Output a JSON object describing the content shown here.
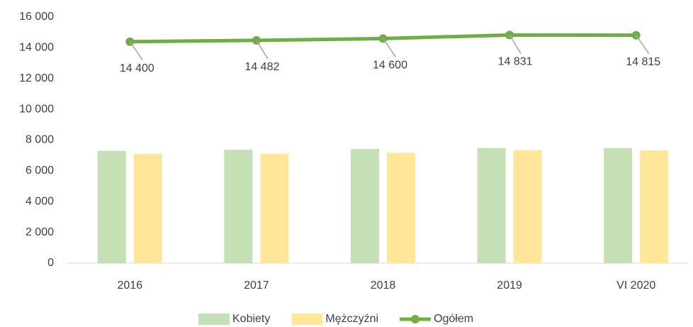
{
  "chart_data": {
    "type": "bar_line",
    "categories": [
      "2016",
      "2017",
      "2018",
      "2019",
      "VI 2020"
    ],
    "series": [
      {
        "name": "Kobiety",
        "type": "bar",
        "color": "#c5e0b4",
        "values": [
          7300,
          7370,
          7420,
          7490,
          7480
        ]
      },
      {
        "name": "Mężczyźni",
        "type": "bar",
        "color": "#ffe699",
        "values": [
          7100,
          7112,
          7180,
          7341,
          7335
        ]
      },
      {
        "name": "Ogółem",
        "type": "line",
        "color": "#70ad47",
        "values": [
          14400,
          14482,
          14600,
          14831,
          14815
        ],
        "value_labels": [
          "14 400",
          "14 482",
          "14 600",
          "14 831",
          "14 815"
        ]
      }
    ],
    "ylim": [
      0,
      16000
    ],
    "yticks": [
      0,
      {
        "value": 2000,
        "label": "2 000"
      },
      {
        "value": 4000,
        "label": "4 000"
      },
      {
        "value": 6000,
        "label": "6 000"
      },
      {
        "value": 8000,
        "label": "8 000"
      },
      {
        "value": 10000,
        "label": "10 000"
      },
      {
        "value": 12000,
        "label": "12 000"
      },
      {
        "value": 14000,
        "label": "14 000"
      },
      {
        "value": 16000,
        "label": "16 000"
      }
    ],
    "grid": false,
    "legend": "bottom"
  }
}
